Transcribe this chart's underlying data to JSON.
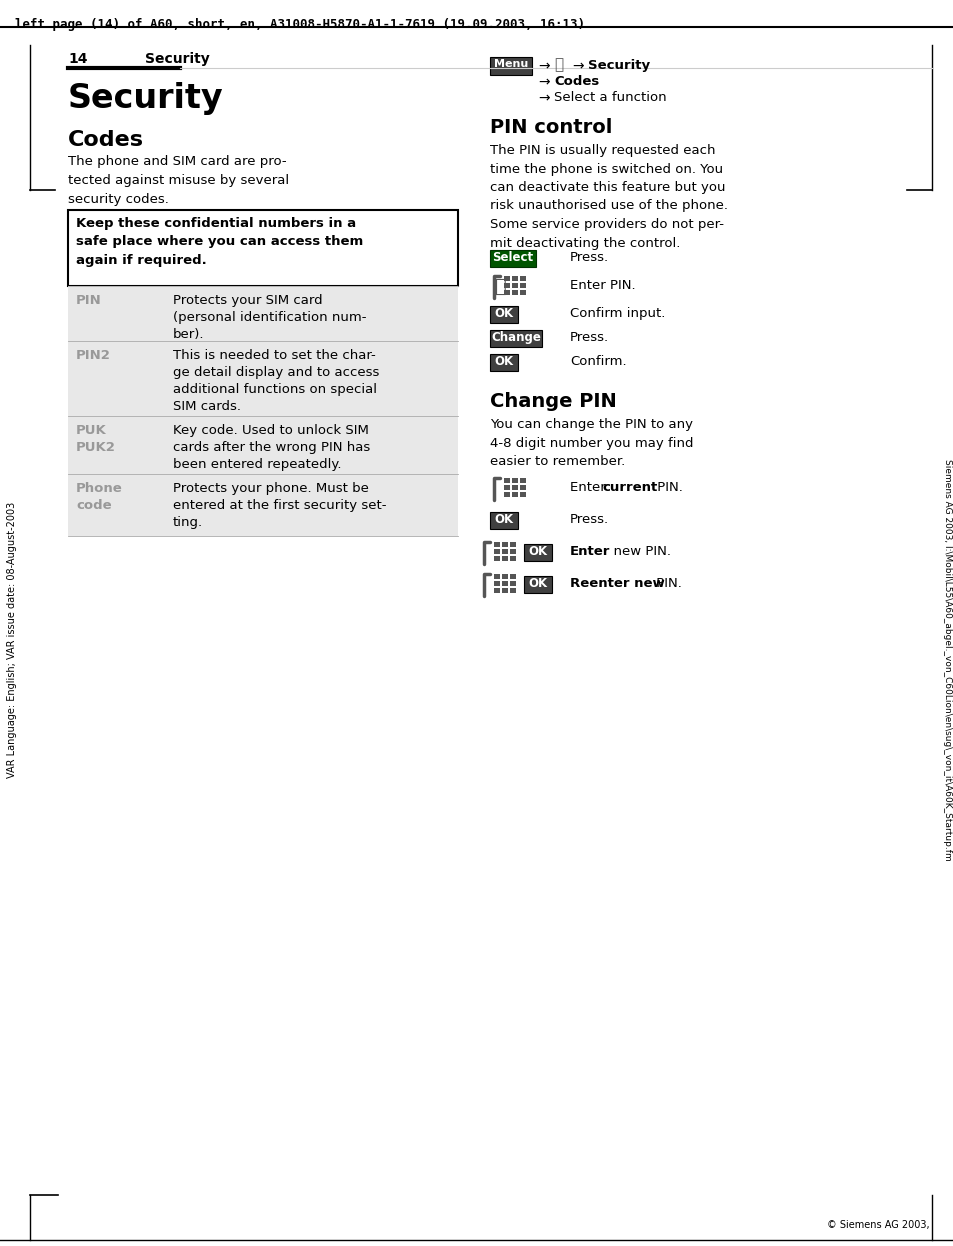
{
  "top_header": "left page (14) of A60, short, en, A31008-H5870-A1-1-7619 (19.09.2003, 16:13)",
  "side_text": "VAR Language: English; VAR issue date: 08-August-2003",
  "page_number": "14",
  "chapter_title": "Security",
  "main_title": "Security",
  "section1_title": "Codes",
  "section1_body_lines": [
    "The phone and SIM card are pro-",
    "tected against misuse by several",
    "security codes."
  ],
  "warning_text": "Keep these confidential numbers in a\nsafe place where you can access them\nagain if required.",
  "table_rows": [
    {
      "key": "PIN",
      "value": "Protects your SIM card\n(personal identification num-\nber)."
    },
    {
      "key": "PIN2",
      "value": "This is needed to set the char-\nge detail display and to access\nadditional functions on special\nSIM cards."
    },
    {
      "key": "PUK\nPUK2",
      "value": "Key code. Used to unlock SIM\ncards after the wrong PIN has\nbeen entered repeatedly."
    },
    {
      "key": "Phone\ncode",
      "value": "Protects your phone. Must be\nentered at the first security set-\nting."
    }
  ],
  "section2_title": "PIN control",
  "section2_body": "The PIN is usually requested each\ntime the phone is switched on. You\ncan deactivate this feature but you\nrisk unauthorised use of the phone.\nSome service providers do not per-\nmit deactivating the control.",
  "section3_title": "Change PIN",
  "section3_body": "You can change the PIN to any\n4-8 digit number you may find\neasier to remember.",
  "right_footer": "Siemens AG 2003, I:\\Mobil\\L55\\A60_abgel._von_C60Lion\\en\\sug\\_von_it\\A60K_Startup.fm",
  "bg_color": "#ffffff",
  "text_color": "#000000",
  "gray_key_color": "#888888",
  "table_bg": "#e8e8e8",
  "header_underline_color": "#000000",
  "light_line_color": "#cccccc"
}
